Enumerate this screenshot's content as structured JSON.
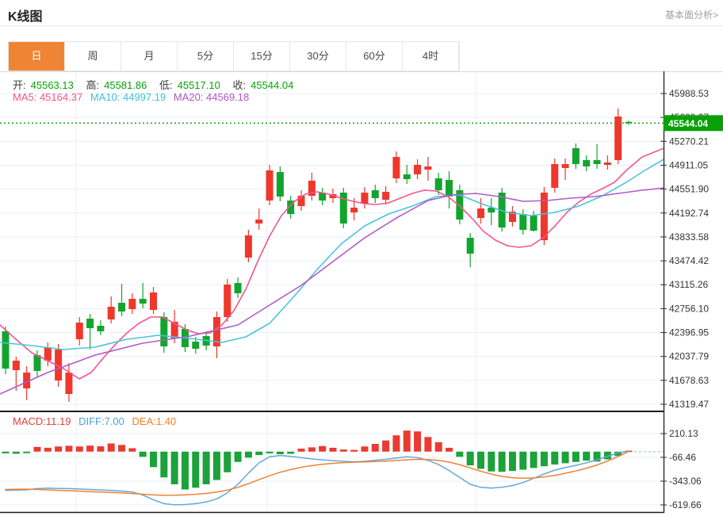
{
  "header": {
    "title": "K线图",
    "link": "基本面分析>"
  },
  "tabs": {
    "items": [
      "日",
      "周",
      "月",
      "5分",
      "15分",
      "30分",
      "60分",
      "4时"
    ],
    "active": "日"
  },
  "ohlc": {
    "items": [
      {
        "label": "开:",
        "value": "45563.13"
      },
      {
        "label": "高:",
        "value": "45581.86"
      },
      {
        "label": "低:",
        "value": "45517.10"
      },
      {
        "label": "收:",
        "value": "45544.04"
      }
    ]
  },
  "ma_legend": {
    "ma5": "MA5: 45164.37",
    "ma10": "MA10: 44997.19",
    "ma20": "MA20: 44569.18"
  },
  "macd_legend": {
    "macd": "MACD:11.19",
    "diff": "DIFF:7.00",
    "dea": "DEA:1.40"
  },
  "current_price": {
    "value": "45544.04"
  },
  "colors": {
    "up_candle": "#ef372c",
    "down_candle": "#13a42e",
    "price_line": "#28a428",
    "price_badge": "#09a109",
    "ma5": "#f2558c",
    "ma10": "#49c4dc",
    "ma20": "#b25bc8",
    "macd_up": "#e93b32",
    "macd_down": "#1ba23a",
    "diff_line": "#64a8dc",
    "dea_line": "#ef8132",
    "grid": "#e9eff6",
    "axis": "#333333",
    "active_tab": "#ef8435"
  },
  "chart_data": {
    "type": "candlestick+macd",
    "title": "K线图 (daily K-line with MA5/MA10/MA20 and MACD)",
    "price_axis": {
      "ticks": [
        "45988.53",
        "45629.37",
        "45270.21",
        "44911.05",
        "44551.90",
        "44192.74",
        "43833.58",
        "43474.42",
        "43115.26",
        "42756.10",
        "42396.95",
        "42037.79",
        "41678.63",
        "41319.47"
      ],
      "max": 45988.53,
      "min": 41319.47,
      "current_price": 45544.04
    },
    "candles_ohlc": [
      [
        42415.2,
        42486.7,
        41772.1,
        41855.4
      ],
      [
        41831.6,
        42034.1,
        41521.9,
        41974.5
      ],
      [
        41557.6,
        41891.1,
        41378.9,
        41795.8
      ],
      [
        42057.9,
        42129.4,
        41736.3,
        41819.7
      ],
      [
        41974.5,
        42248.5,
        41891.1,
        42177.0
      ],
      [
        41676.7,
        42224.7,
        41581.4,
        42141.3
      ],
      [
        41474.2,
        41938.8,
        41355.1,
        41795.8
      ],
      [
        42296.1,
        42629.6,
        42200.8,
        42546.2
      ],
      [
        42605.8,
        42677.2,
        42141.3,
        42462.8
      ],
      [
        42498.6,
        42582.0,
        42355.6,
        42415.2
      ],
      [
        42593.9,
        42939.3,
        42534.3,
        42784.4
      ],
      [
        42844.0,
        43129.8,
        42641.5,
        42713.0
      ],
      [
        42748.7,
        42986.9,
        42677.2,
        42903.5
      ],
      [
        42903.5,
        43141.7,
        42760.6,
        42832.1
      ],
      [
        42736.8,
        43082.2,
        42677.2,
        42998.8
      ],
      [
        42629.6,
        42701.0,
        42093.6,
        42188.9
      ],
      [
        42308.0,
        42736.8,
        42236.6,
        42558.1
      ],
      [
        42450.9,
        42522.4,
        42105.5,
        42177.0
      ],
      [
        42260.4,
        42331.8,
        42081.7,
        42153.2
      ],
      [
        42343.7,
        42415.2,
        42129.4,
        42200.8
      ],
      [
        42188.9,
        42713.0,
        42010.3,
        42629.6
      ],
      [
        42629.6,
        43201.3,
        42558.1,
        43117.9
      ],
      [
        43141.7,
        43225.1,
        42915.4,
        42986.9
      ],
      [
        43522.9,
        43939.8,
        43451.4,
        43856.4
      ],
      [
        44035.1,
        44261.4,
        43939.8,
        44094.6
      ],
      [
        44380.5,
        44916.5,
        44309.0,
        44833.1
      ],
      [
        44809.2,
        44892.6,
        44368.6,
        44440.0
      ],
      [
        44380.5,
        44451.9,
        44106.5,
        44178.0
      ],
      [
        44297.1,
        44535.3,
        44225.6,
        44451.9
      ],
      [
        44451.9,
        44797.3,
        44380.5,
        44678.2
      ],
      [
        44499.6,
        44571.1,
        44309.0,
        44380.5
      ],
      [
        44416.2,
        44559.2,
        44344.7,
        44475.8
      ],
      [
        44499.6,
        44571.1,
        43963.6,
        44035.1
      ],
      [
        44201.8,
        44416.2,
        44082.7,
        44273.3
      ],
      [
        44332.8,
        44583.0,
        44261.4,
        44499.6
      ],
      [
        44535.3,
        44618.7,
        44344.7,
        44416.2
      ],
      [
        44392.4,
        44594.9,
        44320.9,
        44511.5
      ],
      [
        44714.0,
        45119.0,
        44642.5,
        45035.6
      ],
      [
        44773.5,
        44916.5,
        44630.6,
        44702.1
      ],
      [
        44773.5,
        44999.9,
        44702.1,
        44916.5
      ],
      [
        44845.0,
        45035.6,
        44678.2,
        44892.6
      ],
      [
        44714.0,
        44797.3,
        44463.8,
        44535.3
      ],
      [
        44690.1,
        44821.1,
        44261.4,
        44440.0
      ],
      [
        44535.3,
        44618.7,
        44023.2,
        44094.6
      ],
      [
        43820.7,
        43892.1,
        43379.9,
        43582.4
      ],
      [
        44118.4,
        44416.2,
        44035.1,
        44261.4
      ],
      [
        44273.3,
        44416.2,
        44011.3,
        44201.8
      ],
      [
        44499.6,
        44571.1,
        43916.0,
        43975.5
      ],
      [
        44058.9,
        44297.1,
        43987.4,
        44213.7
      ],
      [
        44178.0,
        44249.5,
        43868.3,
        43939.8
      ],
      [
        44154.2,
        44225.6,
        43916.0,
        43927.9
      ],
      [
        43784.9,
        44583.0,
        43713.4,
        44499.6
      ],
      [
        44571.1,
        45011.8,
        44499.6,
        44928.4
      ],
      [
        44868.9,
        45011.8,
        44690.1,
        44928.4
      ],
      [
        45166.7,
        45238.1,
        44856.9,
        44928.4
      ],
      [
        44987.9,
        45059.4,
        44821.1,
        44892.6
      ],
      [
        44987.9,
        45226.2,
        44856.9,
        44928.4
      ],
      [
        44916.5,
        45059.4,
        44845.0,
        44952.2
      ],
      [
        44987.9,
        45762.2,
        44928.4,
        45643.1
      ],
      [
        45563.13,
        45581.86,
        45517.1,
        45544.04
      ]
    ],
    "ma5_points": [
      [
        0,
        42510.5
      ],
      [
        20,
        42296.1
      ],
      [
        40,
        42093.6
      ],
      [
        60,
        41974.5
      ],
      [
        80,
        41855.4
      ],
      [
        100,
        41700.6
      ],
      [
        115,
        41795.8
      ],
      [
        130,
        42010.3
      ],
      [
        145,
        42212.7
      ],
      [
        160,
        42391.4
      ],
      [
        175,
        42534.3
      ],
      [
        190,
        42629.6
      ],
      [
        205,
        42629.6
      ],
      [
        220,
        42534.3
      ],
      [
        235,
        42439.0
      ],
      [
        250,
        42379.5
      ],
      [
        265,
        42391.4
      ],
      [
        280,
        42510.5
      ],
      [
        295,
        42724.9
      ],
      [
        310,
        43046.5
      ],
      [
        325,
        43463.4
      ],
      [
        340,
        43844.5
      ],
      [
        355,
        44154.2
      ],
      [
        370,
        44356.6
      ],
      [
        385,
        44475.8
      ],
      [
        400,
        44511.5
      ],
      [
        415,
        44475.8
      ],
      [
        430,
        44416.2
      ],
      [
        445,
        44368.6
      ],
      [
        460,
        44332.8
      ],
      [
        475,
        44320.9
      ],
      [
        490,
        44344.7
      ],
      [
        505,
        44416.2
      ],
      [
        520,
        44487.7
      ],
      [
        535,
        44535.3
      ],
      [
        550,
        44523.4
      ],
      [
        565,
        44440.0
      ],
      [
        580,
        44297.1
      ],
      [
        595,
        44118.4
      ],
      [
        610,
        43916.0
      ],
      [
        625,
        43784.9
      ],
      [
        640,
        43701.5
      ],
      [
        655,
        43677.7
      ],
      [
        670,
        43701.5
      ],
      [
        685,
        43820.7
      ],
      [
        700,
        43999.3
      ],
      [
        715,
        44201.8
      ],
      [
        730,
        44356.6
      ],
      [
        745,
        44475.8
      ],
      [
        760,
        44559.2
      ],
      [
        775,
        44654.4
      ],
      [
        790,
        44833.1
      ],
      [
        810,
        45035.6
      ],
      [
        837,
        45164.37
      ]
    ],
    "ma10_points": [
      [
        0,
        42248.5
      ],
      [
        40,
        42200.8
      ],
      [
        80,
        42141.3
      ],
      [
        120,
        42177.0
      ],
      [
        160,
        42296.1
      ],
      [
        200,
        42355.6
      ],
      [
        240,
        42308.0
      ],
      [
        280,
        42248.5
      ],
      [
        310,
        42331.8
      ],
      [
        340,
        42534.3
      ],
      [
        370,
        42927.4
      ],
      [
        400,
        43344.3
      ],
      [
        430,
        43725.4
      ],
      [
        460,
        43999.3
      ],
      [
        490,
        44178.0
      ],
      [
        520,
        44297.1
      ],
      [
        550,
        44440.0
      ],
      [
        580,
        44463.8
      ],
      [
        610,
        44320.9
      ],
      [
        640,
        44201.8
      ],
      [
        670,
        44154.2
      ],
      [
        700,
        44201.8
      ],
      [
        730,
        44297.1
      ],
      [
        760,
        44451.9
      ],
      [
        790,
        44654.4
      ],
      [
        815,
        44845.0
      ],
      [
        837,
        44997.19
      ]
    ],
    "ma20_points": [
      [
        0,
        41474.2
      ],
      [
        60,
        41795.8
      ],
      [
        120,
        42057.9
      ],
      [
        180,
        42236.6
      ],
      [
        240,
        42343.7
      ],
      [
        300,
        42510.5
      ],
      [
        340,
        42808.3
      ],
      [
        380,
        43106.0
      ],
      [
        420,
        43463.4
      ],
      [
        460,
        43820.7
      ],
      [
        500,
        44118.4
      ],
      [
        540,
        44380.5
      ],
      [
        570,
        44463.8
      ],
      [
        600,
        44487.7
      ],
      [
        630,
        44440.0
      ],
      [
        660,
        44368.6
      ],
      [
        690,
        44380.5
      ],
      [
        720,
        44416.2
      ],
      [
        750,
        44440.0
      ],
      [
        780,
        44487.7
      ],
      [
        810,
        44535.3
      ],
      [
        837,
        44569.18
      ]
    ],
    "macd": {
      "axis_ticks": [
        "210.13",
        "-66.46",
        "-343.06",
        "-619.66"
      ],
      "max": 210.13,
      "min": -619.66,
      "hist": [
        -20,
        -25,
        -18,
        55,
        45,
        60,
        68,
        60,
        70,
        62,
        95,
        78,
        40,
        -60,
        -180,
        -300,
        -380,
        -440,
        -420,
        -380,
        -330,
        -240,
        -120,
        -70,
        -40,
        -20,
        -30,
        -25,
        35,
        50,
        65,
        45,
        25,
        20,
        60,
        90,
        130,
        190,
        245,
        235,
        170,
        110,
        45,
        -60,
        -160,
        -200,
        -230,
        -235,
        -225,
        -210,
        -190,
        -170,
        -150,
        -135,
        -120,
        -105,
        -115,
        -90,
        -50,
        11.19
      ],
      "diff": [
        -450,
        -448,
        -445,
        -430,
        -425,
        -428,
        -430,
        -435,
        -440,
        -446,
        -450,
        -458,
        -470,
        -505,
        -560,
        -605,
        -618,
        -615,
        -605,
        -585,
        -550,
        -480,
        -380,
        -250,
        -130,
        -60,
        -45,
        -55,
        -70,
        -85,
        -95,
        -105,
        -112,
        -118,
        -112,
        -100,
        -90,
        -75,
        -60,
        -70,
        -100,
        -150,
        -220,
        -300,
        -380,
        -415,
        -424,
        -415,
        -395,
        -360,
        -310,
        -260,
        -215,
        -185,
        -160,
        -130,
        -95,
        -55,
        -15,
        7.0
      ],
      "dea": [
        -440,
        -437,
        -436,
        -440,
        -445,
        -450,
        -455,
        -460,
        -465,
        -470,
        -475,
        -480,
        -487,
        -495,
        -503,
        -508,
        -507,
        -503,
        -496,
        -486,
        -470,
        -448,
        -415,
        -372,
        -325,
        -280,
        -240,
        -208,
        -182,
        -162,
        -147,
        -136,
        -128,
        -123,
        -119,
        -115,
        -110,
        -103,
        -95,
        -90,
        -92,
        -102,
        -122,
        -152,
        -190,
        -228,
        -262,
        -288,
        -304,
        -310,
        -306,
        -294,
        -276,
        -252,
        -225,
        -193,
        -155,
        -110,
        -55,
        1.4
      ]
    },
    "layout_hints": {
      "grid": true,
      "vertical_gridlines_x": [
        96,
        337,
        600
      ],
      "legend_position": "top-left-overlay"
    }
  }
}
